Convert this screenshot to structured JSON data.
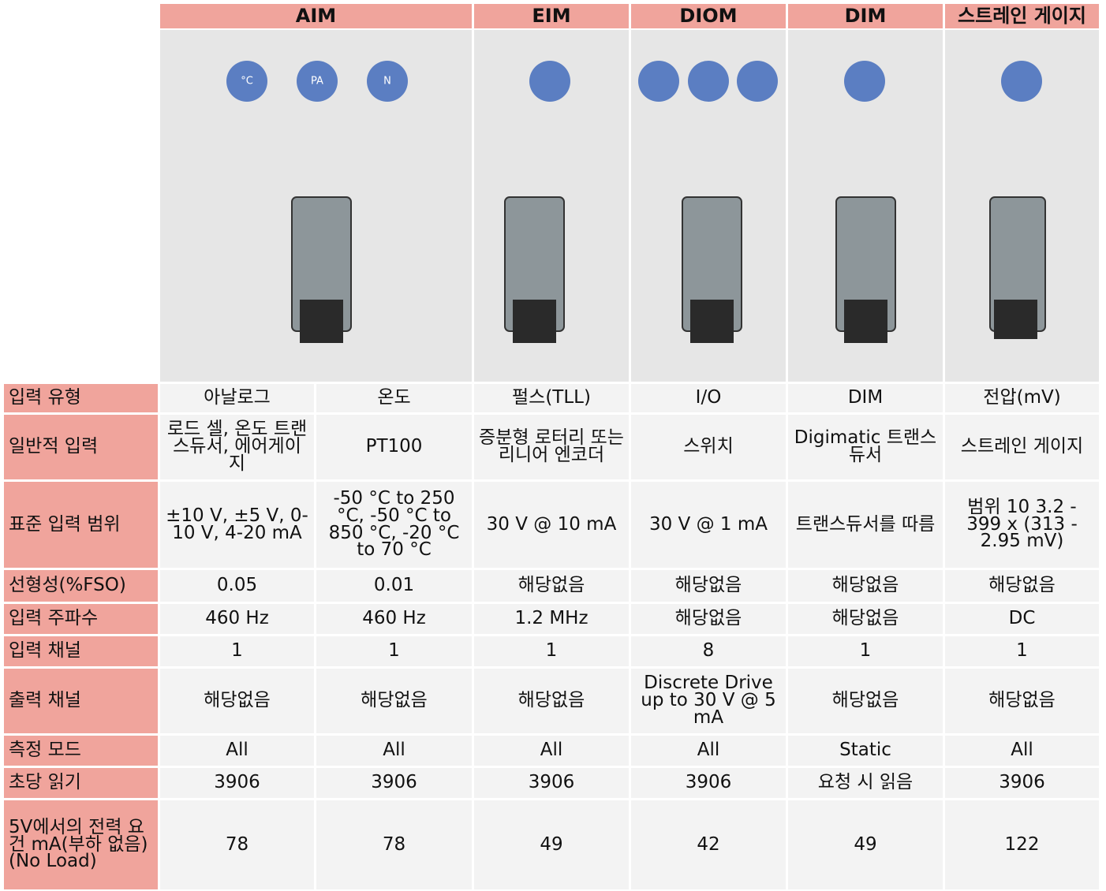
{
  "header": {
    "columns": [
      "AIM",
      "EIM",
      "DIOM",
      "DIM",
      "스트레인 게이지"
    ],
    "aim_icons": [
      "°C",
      "PA",
      "N"
    ]
  },
  "table": {
    "rows": [
      {
        "label": "입력 유형",
        "cells": [
          "아날로그",
          "온도",
          "펄스(TLL)",
          "I/O",
          "DIM",
          "전압(mV)"
        ]
      },
      {
        "label": "일반적 입력",
        "cells": [
          "로드 셀, 온도 트랜스듀서, 에어게이지",
          "PT100",
          "증분형 로터리 또는 리니어 엔코더",
          "스위치",
          "Digimatic 트랜스듀서",
          "스트레인 게이지"
        ]
      },
      {
        "label": "표준 입력 범위",
        "cells": [
          "±10 V, ±5 V, 0-10  V, 4-20 mA",
          "-50 °C to 250 °C, -50 °C to 850 °C, -20 °C to 70 °C",
          "30 V @ 10 mA",
          "30 V @ 1 mA",
          "트랜스듀서를 따름",
          "범위 10 3.2 - 399 x (313 - 2.95 mV)"
        ]
      },
      {
        "label": "선형성(%FSO)",
        "cells": [
          "0.05",
          "0.01",
          "해당없음",
          "해당없음",
          "해당없음",
          "해당없음"
        ]
      },
      {
        "label": "입력 주파수",
        "cells": [
          "460 Hz",
          "460 Hz",
          "1.2 MHz",
          "해당없음",
          "해당없음",
          "DC"
        ]
      },
      {
        "label": "입력 채널",
        "cells": [
          "1",
          "1",
          "1",
          "8",
          "1",
          "1"
        ]
      },
      {
        "label": "출력 채널",
        "cells": [
          "해당없음",
          "해당없음",
          "해당없음",
          "Discrete Drive up to 30 V @ 5 mA",
          "해당없음",
          "해당없음"
        ]
      },
      {
        "label": "측정 모드",
        "cells": [
          "All",
          "All",
          "All",
          "All",
          "Static",
          "All"
        ]
      },
      {
        "label": "초당 읽기",
        "cells": [
          "3906",
          "3906",
          "3906",
          "3906",
          "요청 시 읽음",
          "3906"
        ]
      },
      {
        "label": "5V에서의 전력 요건 mA(부하 없음)(No Load)",
        "cells": [
          "78",
          "78",
          "49",
          "42",
          "49",
          "122"
        ]
      }
    ]
  }
}
